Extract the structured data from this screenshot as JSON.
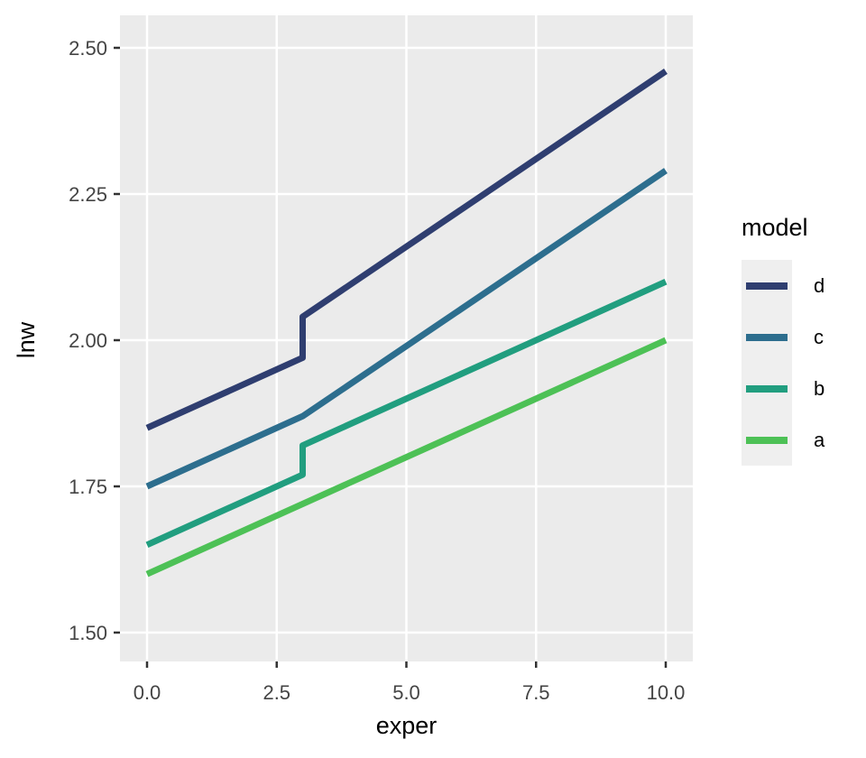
{
  "figure": {
    "background": "#FFFFFF",
    "panel_bg": "#EBEBEB",
    "grid_color": "#FFFFFF",
    "tick_color": "#333333",
    "tick_label_color": "#444444",
    "legend_key_bg": "#EFEFEF"
  },
  "axes": {
    "x_title": "exper",
    "y_title": "lnw",
    "x_tick_labels": [
      "0.0",
      "2.5",
      "5.0",
      "7.5",
      "10.0"
    ],
    "y_tick_labels": [
      "1.50",
      "1.75",
      "2.00",
      "2.25",
      "2.50"
    ]
  },
  "legend": {
    "title": "model",
    "position": "right",
    "items": [
      {
        "label": "d",
        "color": "#2F3E70"
      },
      {
        "label": "c",
        "color": "#2D6E8E"
      },
      {
        "label": "b",
        "color": "#219E7F"
      },
      {
        "label": "a",
        "color": "#4DC156"
      }
    ]
  },
  "chart_data": {
    "type": "line",
    "title": "",
    "xlabel": "exper",
    "ylabel": "lnw",
    "xlim": [
      0,
      10
    ],
    "ylim": [
      1.45,
      2.55
    ],
    "x_tick_values": [
      0,
      2.5,
      5,
      7.5,
      10
    ],
    "y_tick_values": [
      1.5,
      1.75,
      2.0,
      2.25,
      2.5
    ],
    "grid": "major-only",
    "legend_title": "model",
    "legend_position": "right",
    "series": [
      {
        "name": "d",
        "color": "#2F3E70",
        "points": [
          [
            0,
            1.85
          ],
          [
            3,
            1.97
          ],
          [
            3,
            2.04
          ],
          [
            10,
            2.46
          ]
        ],
        "note": "slope 0.04 before exper=3, jump +0.07 at 3, slope 0.06 after"
      },
      {
        "name": "c",
        "color": "#2D6E8E",
        "points": [
          [
            0,
            1.75
          ],
          [
            3,
            1.87
          ],
          [
            10,
            2.29
          ]
        ],
        "note": "slope 0.04 before exper=3, kink to slope 0.06 after, no jump"
      },
      {
        "name": "b",
        "color": "#219E7F",
        "points": [
          [
            0,
            1.65
          ],
          [
            3,
            1.77
          ],
          [
            3,
            1.82
          ],
          [
            10,
            2.1
          ]
        ],
        "note": "slope 0.04, jump +0.05 at exper=3, slope 0.04 after"
      },
      {
        "name": "a",
        "color": "#4DC156",
        "points": [
          [
            0,
            1.6
          ],
          [
            10,
            2.0
          ]
        ],
        "note": "straight line, slope 0.04"
      }
    ]
  }
}
